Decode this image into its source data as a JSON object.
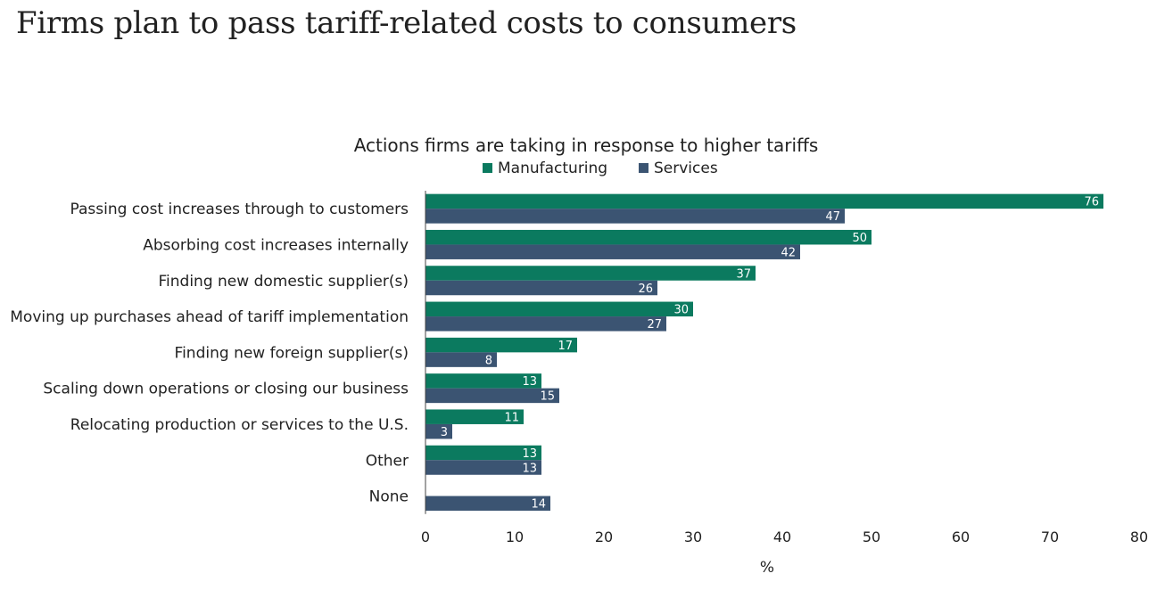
{
  "page": {
    "title": "Firms plan to pass tariff-related costs to consumers"
  },
  "chart_data": {
    "type": "bar",
    "orientation": "horizontal",
    "title": "Actions firms are taking in response to higher tariffs",
    "xlabel": "%",
    "ylabel": "",
    "xlim": [
      0,
      80
    ],
    "xticks": [
      0,
      10,
      20,
      30,
      40,
      50,
      60,
      70,
      80
    ],
    "grid": false,
    "legend_position": "top-center",
    "categories": [
      "Passing cost increases through to customers",
      "Absorbing cost increases internally",
      "Finding new domestic supplier(s)",
      "Moving up purchases ahead of tariff implementation",
      "Finding new foreign supplier(s)",
      "Scaling down operations or closing our business",
      "Relocating production or services to the U.S.",
      "Other",
      "None"
    ],
    "series": [
      {
        "name": "Manufacturing",
        "color": "#0b7a5f",
        "values": [
          76,
          50,
          37,
          30,
          17,
          13,
          11,
          13,
          null
        ]
      },
      {
        "name": "Services",
        "color": "#3b5472",
        "values": [
          47,
          42,
          26,
          27,
          8,
          15,
          3,
          13,
          14
        ]
      }
    ]
  }
}
